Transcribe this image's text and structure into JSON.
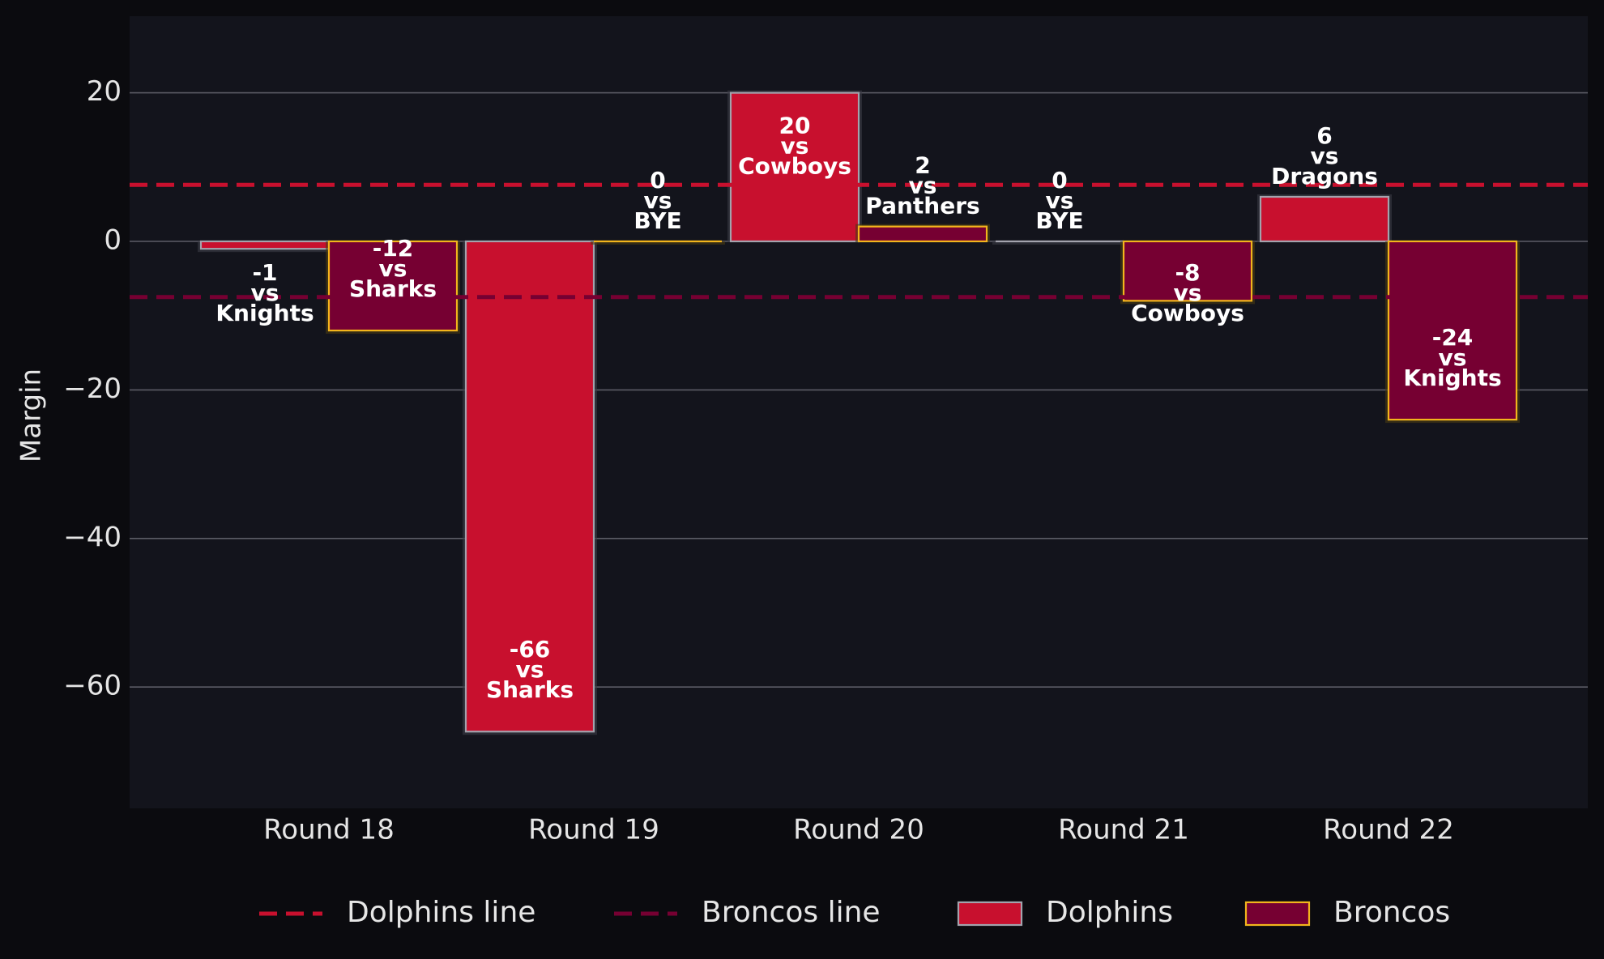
{
  "chart_data": {
    "type": "bar",
    "ylabel": "Margin",
    "ylim": [
      -76,
      30
    ],
    "yticks": [
      20,
      0,
      -20,
      -40,
      -60
    ],
    "ytick_labels": [
      "20",
      "0",
      "−20",
      "−40",
      "−60"
    ],
    "categories": [
      "Round 18",
      "Round 19",
      "Round 20",
      "Round 21",
      "Round 22"
    ],
    "series": [
      {
        "name": "Dolphins",
        "color": "#c8102e",
        "edge": "#a3a3ad",
        "values": [
          -1,
          -66,
          20,
          0,
          6
        ],
        "opponents": [
          "Knights",
          "Sharks",
          "Cowboys",
          "BYE",
          "Dragons"
        ]
      },
      {
        "name": "Broncos",
        "color": "#760032",
        "edge": "#f2b51c",
        "values": [
          -12,
          0,
          2,
          -8,
          -24
        ],
        "opponents": [
          "Sharks",
          "BYE",
          "Panthers",
          "Cowboys",
          "Knights"
        ]
      }
    ],
    "reference_lines": [
      {
        "name": "Dolphins line",
        "value": 7.6,
        "color": "#c8102e"
      },
      {
        "name": "Broncos line",
        "value": -7.5,
        "color": "#760032"
      }
    ],
    "vs_word": "vs",
    "legend": [
      "Dolphins line",
      "Broncos line",
      "Dolphins",
      "Broncos"
    ],
    "legend_position": "bottom",
    "grid": true
  }
}
